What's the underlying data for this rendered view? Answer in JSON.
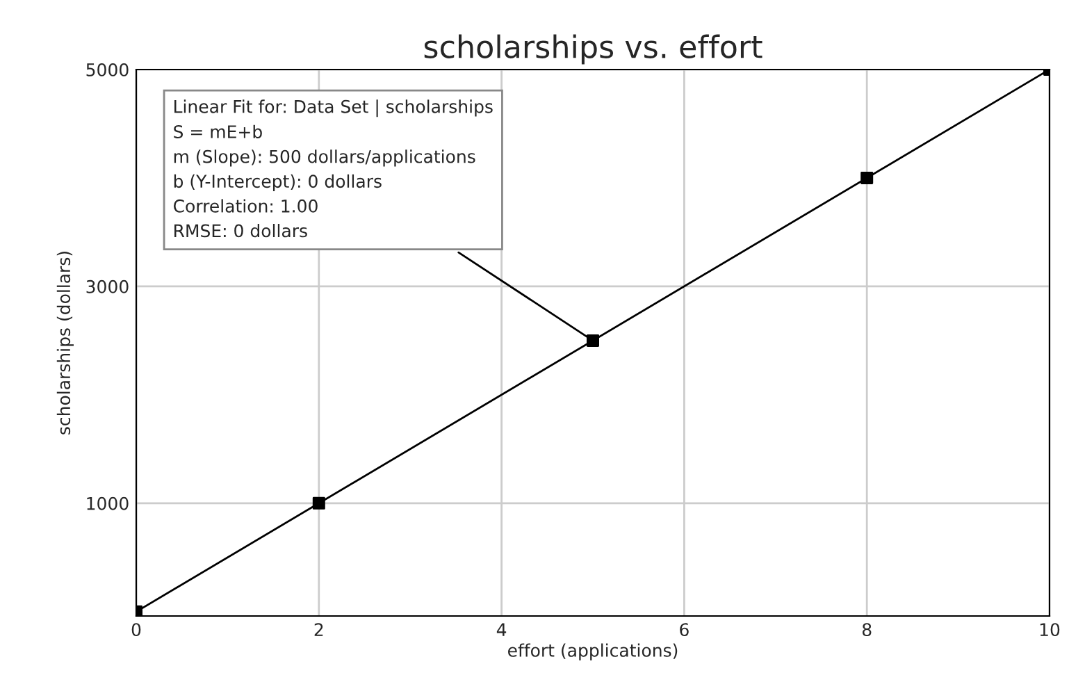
{
  "chart_data": {
    "type": "scatter",
    "title": "scholarships vs. effort",
    "xlabel": "effort (applications)",
    "ylabel": "scholarships (dollars)",
    "series": [
      {
        "color": "#000000",
        "marker": "square",
        "x": [
          0,
          2,
          5,
          8,
          10
        ],
        "values": [
          0,
          1000,
          2500,
          4000,
          5000
        ]
      },
      {
        "type": "line",
        "color": "#000000",
        "marker": "none",
        "line_style": "solid",
        "x": [
          0,
          10
        ],
        "values": [
          0,
          5000
        ]
      }
    ],
    "xlim": [
      0,
      10
    ],
    "ylim": [
      -40,
      5000
    ],
    "xticks": [
      0,
      2,
      4,
      6,
      8,
      10
    ],
    "yticks": [
      1000,
      3000,
      5000
    ],
    "grid": true,
    "legend": false,
    "annotations": [
      {
        "text": "Linear Fit for: Data Set | scholarships\nS = mE+b\nm (Slope): 500 dollars/applications\nb (Y-Intercept): 0 dollars\nCorrelation: 1.00\nRMSE: 0 dollars",
        "x": 5,
        "y": 2500
      }
    ]
  }
}
